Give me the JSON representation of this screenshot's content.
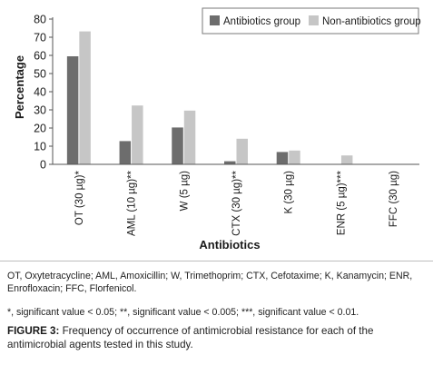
{
  "chart_data": {
    "type": "bar",
    "categories": [
      "OT (30 µg)*",
      "AML (10 µg)**",
      "W (5 µg)",
      "CTX (30 µg)**",
      "K (30 µg)",
      "ENR (5 µg)***",
      "FFC (30 µg)"
    ],
    "series": [
      {
        "name": "Antibiotics group",
        "values": [
          59.5,
          12.8,
          20.3,
          1.7,
          6.8,
          0,
          0
        ],
        "color": "#6d6d6d"
      },
      {
        "name": "Non-antibiotics group",
        "values": [
          73.2,
          32.4,
          29.6,
          14.1,
          7.6,
          4.9,
          0
        ],
        "color": "#c6c6c6"
      }
    ],
    "title": "",
    "xlabel": "Antibiotics",
    "ylabel": "Percentage",
    "ylim": [
      0,
      80
    ],
    "yticks": [
      0,
      10,
      20,
      30,
      40,
      50,
      60,
      70,
      80
    ],
    "grid": false,
    "legend_position": "top-right"
  },
  "footnotes": {
    "abbreviations": "OT, Oxytetracycline; AML, Amoxicillin; W, Trimethoprim; CTX, Cefotaxime; K, Kanamycin; ENR, Enrofloxacin; FFC, Florfenicol.",
    "significance": "*, significant value < 0.05; **, significant value < 0.005; ***, significant value < 0.01."
  },
  "caption": {
    "label": "FIGURE 3:",
    "text": " Frequency of occurrence of antimicrobial resistance for each of the antimicrobial agents tested in this study."
  }
}
